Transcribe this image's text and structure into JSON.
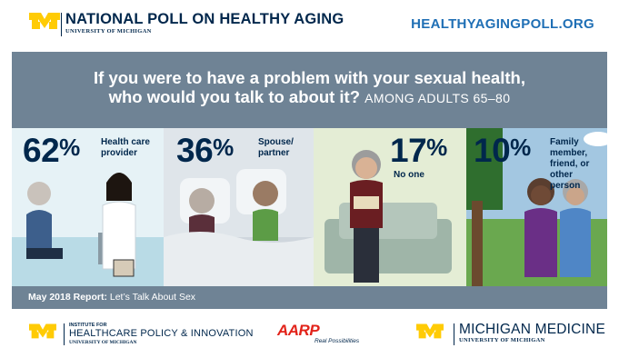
{
  "header": {
    "title": "NATIONAL POLL ON HEALTHY AGING",
    "subtitle": "UNIVERSITY OF MICHIGAN",
    "url": "HEALTHYAGINGPOLL.ORG"
  },
  "question": {
    "text": "If you were to have a problem with your sexual health, who would you talk to about it?",
    "line1": "If you were to have a problem with your sexual health,",
    "line2": "who would you talk to about it?",
    "range": "AMONG ADULTS 65–80"
  },
  "stats": [
    {
      "value": 62,
      "number": "62",
      "symbol": "%",
      "label": "Health care provider"
    },
    {
      "value": 36,
      "number": "36",
      "symbol": "%",
      "label": "Spouse/ partner"
    },
    {
      "value": 17,
      "number": "17",
      "symbol": "%",
      "label": "No one"
    },
    {
      "value": 10,
      "number": "10",
      "symbol": "%",
      "label": "Family member, friend, or other person"
    }
  ],
  "report": {
    "bold": "May 2018 Report:",
    "text": "Let’s Talk About Sex"
  },
  "footer": {
    "ihpi_line1": "INSTITUTE FOR",
    "ihpi_line2": "HEALTHCARE POLICY & INNOVATION",
    "ihpi_line3": "UNIVERSITY OF MICHIGAN",
    "aarp": "AARP",
    "aarp_tagline": "Real Possibilities",
    "mm_line1": "MICHIGAN MEDICINE",
    "mm_line2": "UNIVERSITY OF MICHIGAN"
  },
  "colors": {
    "navy": "#00274c",
    "maize": "#ffcb05",
    "link_blue": "#1f6fb5",
    "panel_gray": "#6f8395",
    "aarp_red": "#e2231a"
  }
}
